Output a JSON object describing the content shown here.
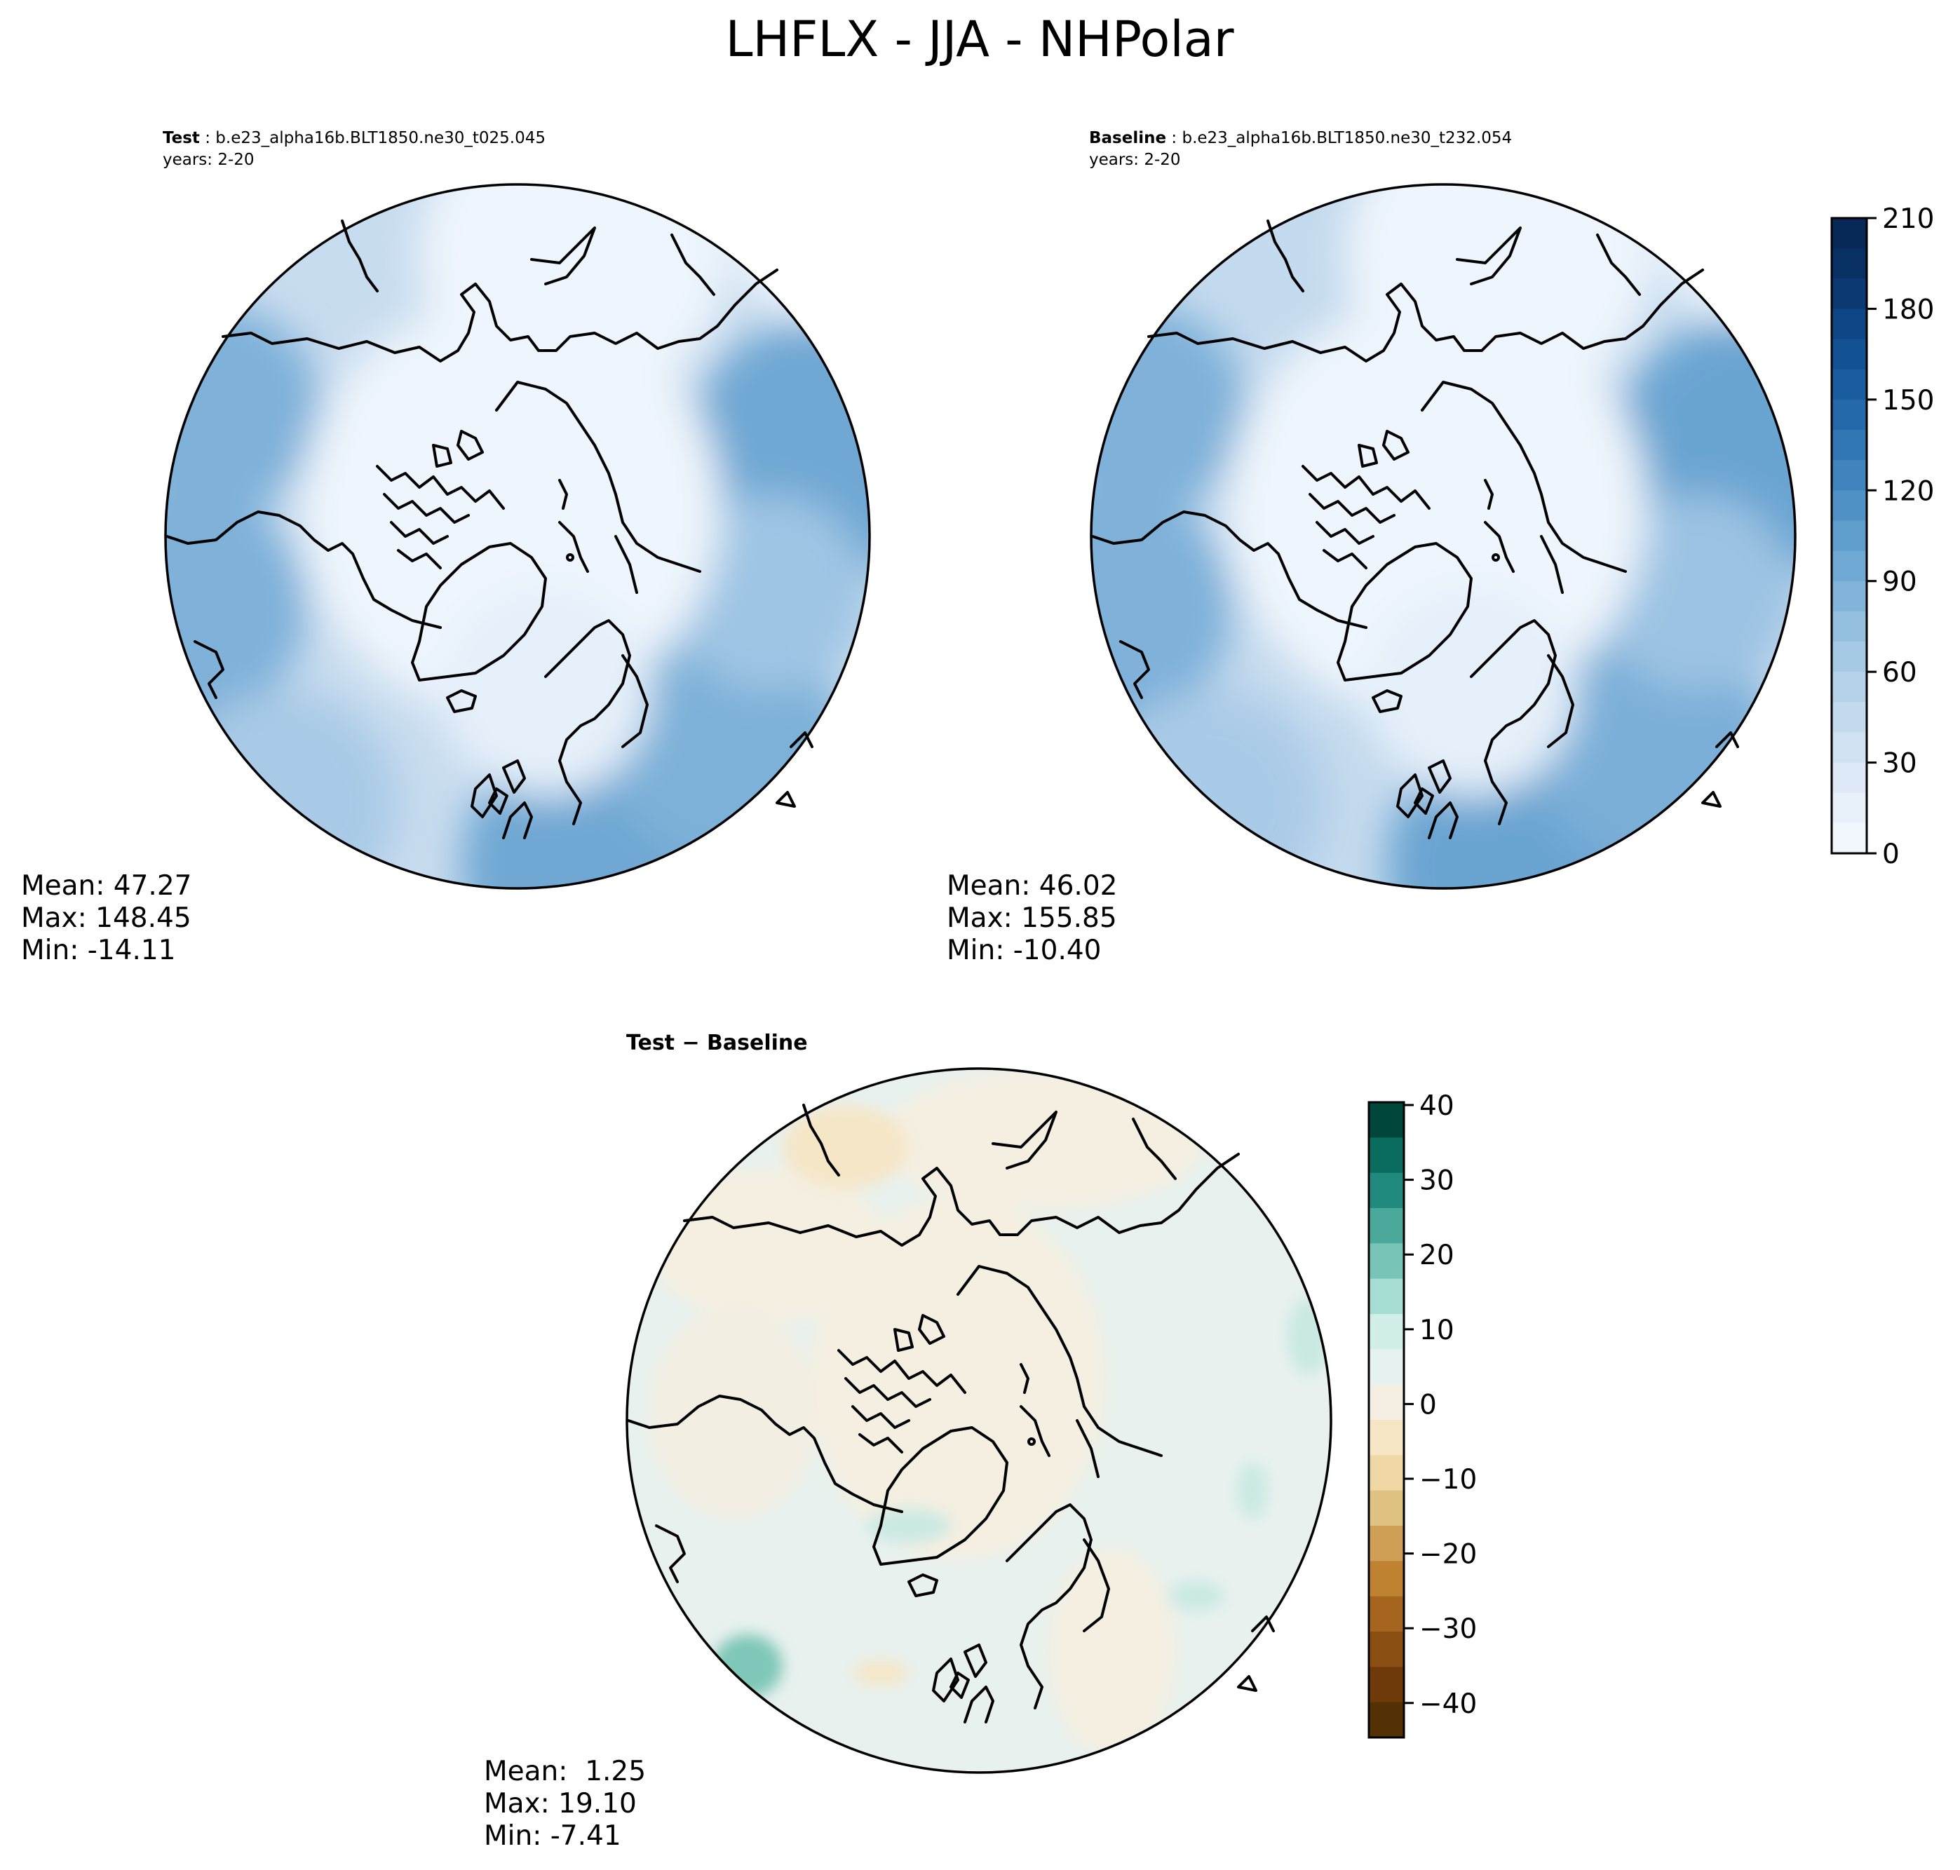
{
  "title": "LHFLX - JJA - NHPolar",
  "panels": [
    {
      "id": "test",
      "label_bold": "Test",
      "label_rest": " : b.e23_alpha16b.BLT1850.ne30_t025.045",
      "years": "years: 2-20",
      "stats": {
        "mean": "Mean: 47.27",
        "max": "Max: 148.45",
        "min": "Min: -14.11"
      }
    },
    {
      "id": "baseline",
      "label_bold": "Baseline",
      "label_rest": " : b.e23_alpha16b.BLT1850.ne30_t232.054",
      "years": "years: 2-20",
      "stats": {
        "mean": "Mean: 46.02",
        "max": "Max: 155.85",
        "min": "Min: -10.40"
      }
    },
    {
      "id": "diff",
      "label_bold": "Test − Baseline",
      "stats": {
        "mean": "Mean:  1.25",
        "max": "Max: 19.10",
        "min": "Min: -7.41"
      }
    }
  ],
  "colorbars": {
    "main": {
      "ticks": [
        "0",
        "30",
        "60",
        "90",
        "120",
        "150",
        "180",
        "210"
      ],
      "colors": [
        "#f2f7fd",
        "#e8f1fa",
        "#dde9f6",
        "#d1e2f2",
        "#c4daee",
        "#b6d2ea",
        "#a6c9e4",
        "#94bfdf",
        "#82b4d9",
        "#70a9d3",
        "#5f9dcc",
        "#4f91c5",
        "#3f84bd",
        "#3177b4",
        "#246aab",
        "#195da0",
        "#125194",
        "#0e4584",
        "#0b3a73",
        "#093062",
        "#082858"
      ]
    },
    "diff": {
      "ticks": [
        "40",
        "30",
        "20",
        "10",
        "0",
        "−10",
        "−20",
        "−30",
        "−40"
      ],
      "colors": [
        "#00463b",
        "#0a6b5f",
        "#1f8a7d",
        "#4ba99b",
        "#78c5b7",
        "#a6ddd3",
        "#d1eee9",
        "#e6f2ef",
        "#f5efe3",
        "#f6e6c6",
        "#efd8a5",
        "#e0c282",
        "#cf9f55",
        "#bf8231",
        "#a6651e",
        "#8a4e12",
        "#6e3a0a",
        "#543005"
      ]
    }
  }
}
